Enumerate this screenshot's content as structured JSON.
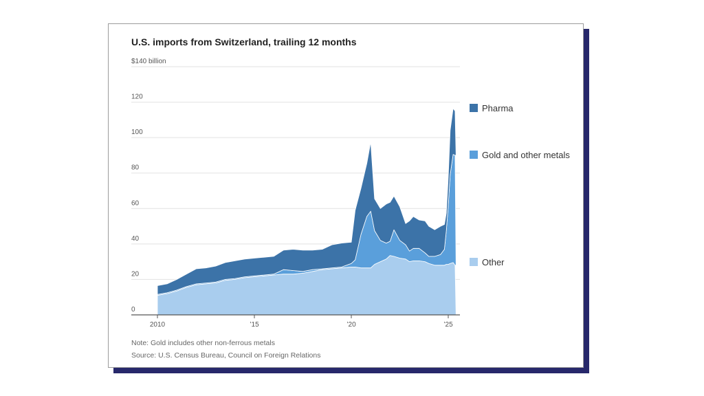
{
  "title": "U.S. imports from Switzerland, trailing 12 months",
  "note": "Note: Gold includes other non-ferrous metals",
  "source": "Source: U.S. Census Bureau, Council on Foreign Relations",
  "colors": {
    "pharma": "#3c73a8",
    "gold": "#5a9fdb",
    "other": "#a9cdee",
    "gridline": "#e2e2e2",
    "axis": "#555555",
    "shadow": "#27286b"
  },
  "chart_data": {
    "type": "area",
    "stacked": true,
    "title": "U.S. imports from Switzerland, trailing 12 months",
    "ylabel": "",
    "y_unit_label": "$140 billion",
    "ylim": [
      0,
      140
    ],
    "xlim": [
      2010,
      2025.6
    ],
    "y_ticks": [
      {
        "value": 0,
        "label": "0"
      },
      {
        "value": 20,
        "label": "20"
      },
      {
        "value": 40,
        "label": "40"
      },
      {
        "value": 60,
        "label": "60"
      },
      {
        "value": 80,
        "label": "80"
      },
      {
        "value": 100,
        "label": "100"
      },
      {
        "value": 120,
        "label": "120"
      },
      {
        "value": 140,
        "label": "$140 billion"
      }
    ],
    "x_ticks": [
      {
        "value": 2010,
        "label": "2010"
      },
      {
        "value": 2015,
        "label": "’15"
      },
      {
        "value": 2020,
        "label": "’20"
      },
      {
        "value": 2025,
        "label": "’25"
      }
    ],
    "grid": true,
    "legend_placement": "right",
    "x": [
      2010,
      2010.5,
      2011,
      2011.5,
      2012,
      2012.5,
      2013,
      2013.5,
      2014,
      2014.5,
      2015,
      2015.5,
      2016,
      2016.5,
      2017,
      2017.5,
      2018,
      2018.5,
      2019,
      2019.5,
      2020,
      2020.2,
      2020.5,
      2020.8,
      2021,
      2021.2,
      2021.5,
      2021.8,
      2022,
      2022.2,
      2022.5,
      2022.8,
      2023,
      2023.2,
      2023.5,
      2023.8,
      2024,
      2024.3,
      2024.6,
      2024.8,
      2024.9,
      2025,
      2025.1,
      2025.25,
      2025.35
    ],
    "series": [
      {
        "name": "Other",
        "values": [
          11,
          12,
          13.5,
          15.5,
          17,
          17.5,
          18,
          19.5,
          20,
          21,
          21.5,
          22,
          22.5,
          23,
          23,
          23.5,
          24.5,
          25.5,
          26,
          26.5,
          27,
          27,
          26.5,
          26.5,
          26.5,
          28.5,
          30,
          31.5,
          33.5,
          33,
          32,
          31.5,
          30,
          30.5,
          30.5,
          30,
          29,
          28,
          28,
          28,
          28.5,
          28.5,
          29,
          29.5,
          28
        ]
      },
      {
        "name": "Gold and other metals",
        "values": [
          0.5,
          0.5,
          0.5,
          0.5,
          0.5,
          0.5,
          0.5,
          0.5,
          0.5,
          0.5,
          0.5,
          0.5,
          0.5,
          2.5,
          2,
          1,
          1,
          0.5,
          0.5,
          0.5,
          2,
          4,
          19,
          29,
          32,
          19,
          12,
          9,
          8,
          15,
          10,
          8,
          6,
          7,
          7,
          5,
          4,
          5,
          6,
          9,
          19,
          33,
          50,
          61,
          62
        ]
      },
      {
        "name": "Pharma",
        "values": [
          5,
          5,
          6,
          7,
          8.5,
          8.5,
          9,
          9.5,
          10,
          10,
          10,
          10,
          10,
          11,
          12,
          12,
          11,
          11,
          13,
          13.5,
          12,
          28,
          26,
          30,
          39,
          18,
          18,
          22,
          22,
          19,
          19,
          12,
          17,
          18,
          16,
          18,
          17,
          15,
          16,
          14,
          10,
          16,
          25,
          26,
          25
        ]
      }
    ]
  },
  "legend": [
    {
      "label": "Pharma",
      "color": "#3c73a8"
    },
    {
      "label": "Gold and other metals",
      "color": "#5a9fdb"
    },
    {
      "label": "Other",
      "color": "#a9cdee"
    }
  ]
}
